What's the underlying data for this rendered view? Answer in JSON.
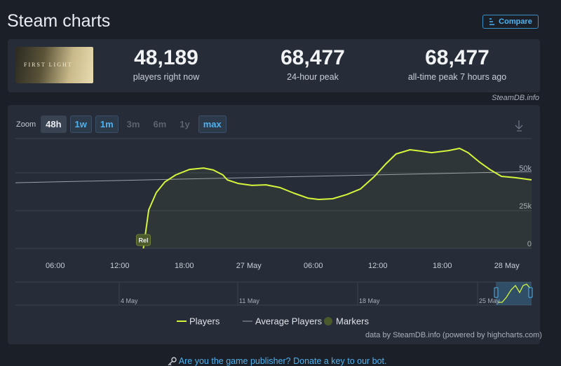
{
  "header": {
    "title": "Steam charts",
    "button": "Compare"
  },
  "stats": {
    "image_text": "FIRST LIGHT",
    "items": [
      {
        "value": "48,189",
        "label": "players right now"
      },
      {
        "value": "68,477",
        "label": "24-hour peak"
      },
      {
        "value": "68,477",
        "label": "all-time peak 7 hours ago"
      }
    ]
  },
  "watermark": "SteamDB.info",
  "zoom": {
    "label": "Zoom",
    "buttons": [
      "48h",
      "1w",
      "1m",
      "3m",
      "6m",
      "1y",
      "max"
    ]
  },
  "chart_data": {
    "type": "line",
    "xlim": [
      2.3,
      50.3
    ],
    "xticks": [
      {
        "value": 6,
        "label": "06:00"
      },
      {
        "value": 12,
        "label": "12:00"
      },
      {
        "value": 18,
        "label": "18:00"
      },
      {
        "value": 24,
        "label": "27 May"
      },
      {
        "value": 30,
        "label": "06:00"
      },
      {
        "value": 36,
        "label": "12:00"
      },
      {
        "value": 42,
        "label": "18:00"
      },
      {
        "value": 48,
        "label": "28 May"
      }
    ],
    "ylim": [
      0,
      72700
    ],
    "yticks": [
      {
        "value": 0,
        "label": "0"
      },
      {
        "value": 25000,
        "label": "25k"
      },
      {
        "value": 50000,
        "label": "50k"
      }
    ],
    "grid": true,
    "series": [
      {
        "name": "Players",
        "color": "#d4f53c",
        "x": [
          14.2,
          14.7,
          15.4,
          16.2,
          17.2,
          18.5,
          19.8,
          20.7,
          21.6,
          22.0,
          23.0,
          24.3,
          25.6,
          26.9,
          28.2,
          29.5,
          30.5,
          31.8,
          33.1,
          34.4,
          35.7,
          36.7,
          37.7,
          39.0,
          40.0,
          41.0,
          42.6,
          43.6,
          44.4,
          45.5,
          46.5,
          47.5,
          48.8,
          50.3
        ],
        "values": [
          0,
          25500,
          37000,
          44000,
          48600,
          52300,
          53200,
          51900,
          48600,
          45400,
          43000,
          41700,
          42100,
          40300,
          36600,
          33300,
          32400,
          32900,
          35600,
          39400,
          47700,
          55600,
          62500,
          65300,
          64400,
          63400,
          64800,
          66200,
          63400,
          56900,
          51900,
          47700,
          46800,
          45400
        ]
      },
      {
        "name": "Average Players",
        "color": "#9aa1ab",
        "x": [
          2.3,
          50.3
        ],
        "values": [
          43500,
          50900
        ]
      }
    ],
    "markers": {
      "name": "Markers",
      "items": [
        {
          "label": "Rel",
          "x": 14.2
        }
      ]
    }
  },
  "navigator": {
    "labels": [
      "4 May",
      "11 May",
      "18 May",
      "25 May"
    ]
  },
  "credits": "data by SteamDB.info (powered by highcharts.com)",
  "footer_link": "Are you the game publisher? Donate a key to our bot."
}
